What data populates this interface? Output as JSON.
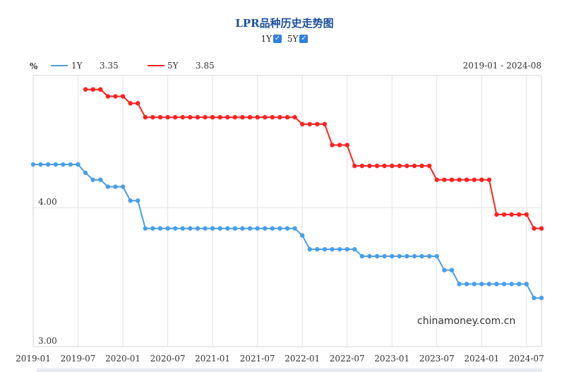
{
  "title": "LPR品种历史走势图",
  "toggles": [
    {
      "label": "1Y",
      "checked": true
    },
    {
      "label": "5Y",
      "checked": true
    }
  ],
  "legend": {
    "unit": "%",
    "items": [
      {
        "name": "1Y",
        "value": "3.35",
        "color": "#4a9ee8"
      },
      {
        "name": "5Y",
        "value": "3.85",
        "color": "#ff2020"
      }
    ],
    "range": "2019-01 - 2024-08"
  },
  "watermark": "chinamoney.com.cn",
  "chart_data": {
    "type": "line",
    "x_start": "2019-01",
    "x_tick_labels": [
      "2019-01",
      "2019-07",
      "2020-01",
      "2020-07",
      "2021-01",
      "2021-07",
      "2022-01",
      "2022-07",
      "2023-01",
      "2023-07",
      "2024-01",
      "2024-07"
    ],
    "y_tick_labels": [
      "3.00",
      "4.00"
    ],
    "ylim": [
      3.0,
      4.95
    ],
    "grid": true,
    "legend_position": "top-left",
    "series": [
      {
        "name": "1Y",
        "color": "#4a9ee8",
        "values": [
          4.31,
          4.31,
          4.31,
          4.31,
          4.31,
          4.31,
          4.31,
          4.25,
          4.2,
          4.2,
          4.15,
          4.15,
          4.15,
          4.05,
          4.05,
          3.85,
          3.85,
          3.85,
          3.85,
          3.85,
          3.85,
          3.85,
          3.85,
          3.85,
          3.85,
          3.85,
          3.85,
          3.85,
          3.85,
          3.85,
          3.85,
          3.85,
          3.85,
          3.85,
          3.85,
          3.85,
          3.8,
          3.7,
          3.7,
          3.7,
          3.7,
          3.7,
          3.7,
          3.7,
          3.65,
          3.65,
          3.65,
          3.65,
          3.65,
          3.65,
          3.65,
          3.65,
          3.65,
          3.65,
          3.65,
          3.55,
          3.55,
          3.45,
          3.45,
          3.45,
          3.45,
          3.45,
          3.45,
          3.45,
          3.45,
          3.45,
          3.45,
          3.35,
          3.35
        ]
      },
      {
        "name": "5Y",
        "color": "#ff2020",
        "values": [
          null,
          null,
          null,
          null,
          null,
          null,
          null,
          4.85,
          4.85,
          4.85,
          4.8,
          4.8,
          4.8,
          4.75,
          4.75,
          4.65,
          4.65,
          4.65,
          4.65,
          4.65,
          4.65,
          4.65,
          4.65,
          4.65,
          4.65,
          4.65,
          4.65,
          4.65,
          4.65,
          4.65,
          4.65,
          4.65,
          4.65,
          4.65,
          4.65,
          4.65,
          4.6,
          4.6,
          4.6,
          4.6,
          4.45,
          4.45,
          4.45,
          4.3,
          4.3,
          4.3,
          4.3,
          4.3,
          4.3,
          4.3,
          4.3,
          4.3,
          4.3,
          4.3,
          4.2,
          4.2,
          4.2,
          4.2,
          4.2,
          4.2,
          4.2,
          4.2,
          3.95,
          3.95,
          3.95,
          3.95,
          3.95,
          3.85,
          3.85
        ]
      }
    ]
  }
}
